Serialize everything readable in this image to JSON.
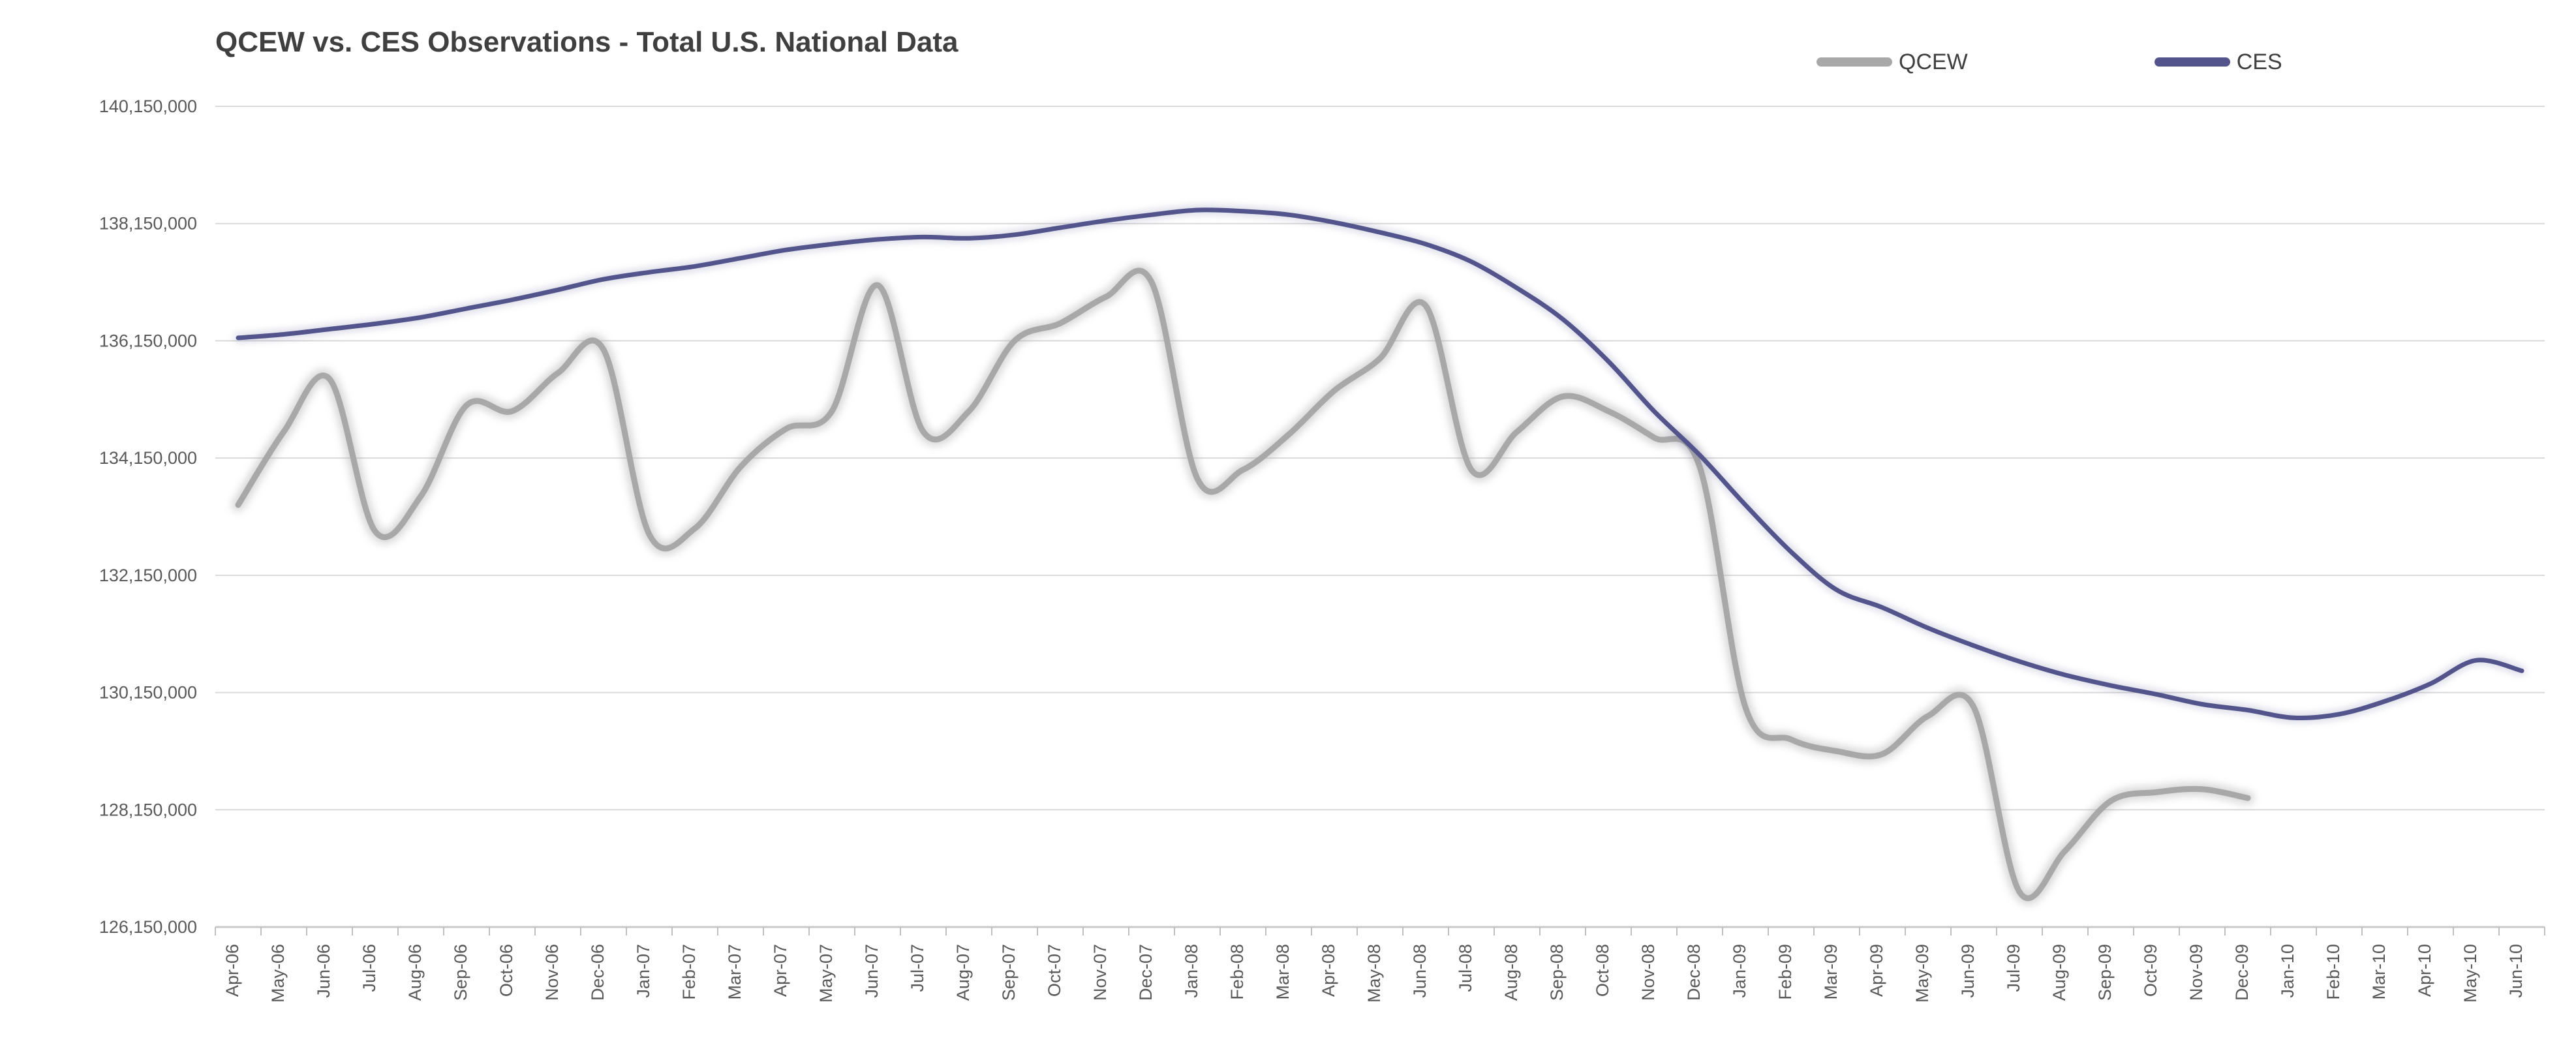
{
  "header": {
    "title": "QCEW vs. CES Observations - Total U.S. National Data"
  },
  "legend": {
    "items": [
      {
        "label": "QCEW",
        "color": "#a8a8a8"
      },
      {
        "label": "CES",
        "color": "#53548c"
      }
    ]
  },
  "chart_data": {
    "type": "line",
    "title": "QCEW vs. CES Observations - Total U.S. National Data",
    "xlabel": "",
    "ylabel": "",
    "grid": true,
    "smoothed": true,
    "legend_position": "top-right",
    "x_label_rotation": -90,
    "ylim": [
      126150000,
      140150000
    ],
    "y_tick_step": 2000000,
    "y_ticks": [
      140150000,
      138150000,
      136150000,
      134150000,
      132150000,
      130150000,
      128150000,
      126150000
    ],
    "categories": [
      "Apr-06",
      "May-06",
      "Jun-06",
      "Jul-06",
      "Aug-06",
      "Sep-06",
      "Oct-06",
      "Nov-06",
      "Dec-06",
      "Jan-07",
      "Feb-07",
      "Mar-07",
      "Apr-07",
      "May-07",
      "Jun-07",
      "Jul-07",
      "Aug-07",
      "Sep-07",
      "Oct-07",
      "Nov-07",
      "Dec-07",
      "Jan-08",
      "Feb-08",
      "Mar-08",
      "Apr-08",
      "May-08",
      "Jun-08",
      "Jul-08",
      "Aug-08",
      "Sep-08",
      "Oct-08",
      "Nov-08",
      "Dec-08",
      "Jan-09",
      "Feb-09",
      "Mar-09",
      "Apr-09",
      "May-09",
      "Jun-09",
      "Jul-09",
      "Aug-09",
      "Sep-09",
      "Oct-09",
      "Nov-09",
      "Dec-09",
      "Jan-10",
      "Feb-10",
      "Mar-10",
      "Apr-10",
      "May-10",
      "Jun-10"
    ],
    "series": [
      {
        "name": "QCEW",
        "color": "#a8a8a8",
        "stroke_width": 9,
        "glow": true,
        "values": [
          133350000,
          134600000,
          135500000,
          132900000,
          133500000,
          135050000,
          134950000,
          135600000,
          136000000,
          132850000,
          132950000,
          134000000,
          134650000,
          134950000,
          137100000,
          134600000,
          134950000,
          136150000,
          136450000,
          136900000,
          137150000,
          133800000,
          133950000,
          134550000,
          135300000,
          135850000,
          136750000,
          133950000,
          134600000,
          135200000,
          134950000,
          134500000,
          134000000,
          129900000,
          129350000,
          129150000,
          129100000,
          129750000,
          129900000,
          126750000,
          127450000,
          128300000,
          128450000,
          128500000,
          128350000
        ]
      },
      {
        "name": "CES",
        "color": "#53548c",
        "stroke_width": 7,
        "glow": false,
        "values": [
          136200000,
          136260000,
          136350000,
          136440000,
          136550000,
          136700000,
          136850000,
          137020000,
          137200000,
          137320000,
          137420000,
          137560000,
          137700000,
          137800000,
          137880000,
          137920000,
          137900000,
          137960000,
          138080000,
          138200000,
          138300000,
          138380000,
          138360000,
          138300000,
          138170000,
          138000000,
          137800000,
          137500000,
          137050000,
          136520000,
          135800000,
          134950000,
          134200000,
          133350000,
          132550000,
          131900000,
          131600000,
          131250000,
          130950000,
          130680000,
          130450000,
          130270000,
          130120000,
          129950000,
          129850000,
          129720000,
          129780000,
          130000000,
          130300000,
          130700000,
          130520000
        ]
      }
    ]
  }
}
